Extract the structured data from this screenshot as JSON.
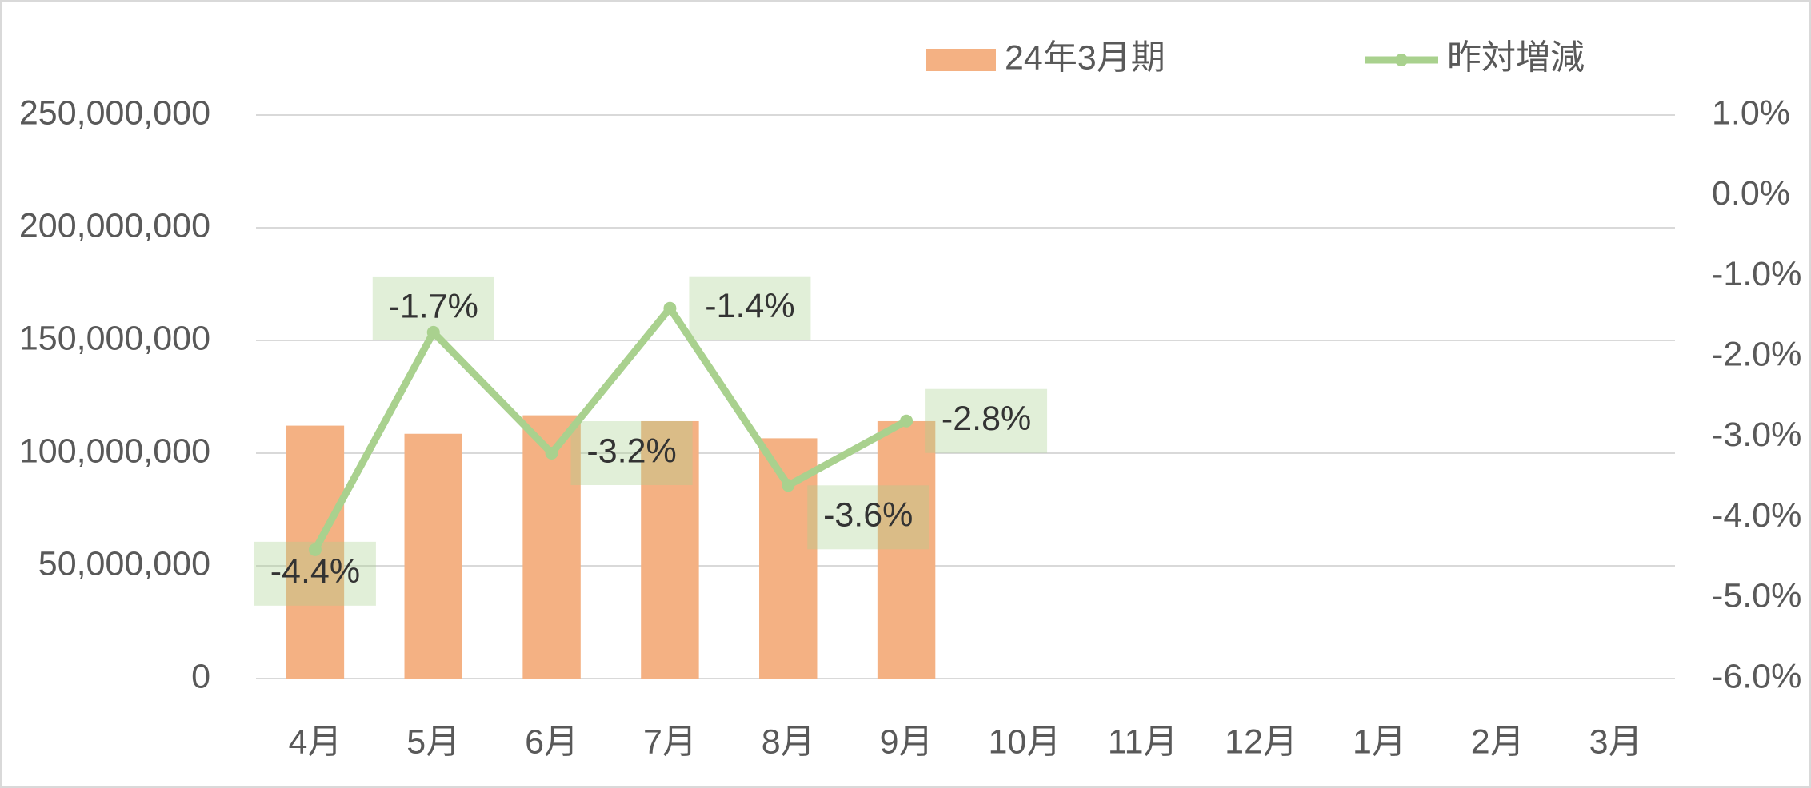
{
  "chart_data": {
    "type": "bar",
    "categories": [
      "4月",
      "5月",
      "6月",
      "7月",
      "8月",
      "9月",
      "10月",
      "11月",
      "12月",
      "1月",
      "2月",
      "3月"
    ],
    "series": [
      {
        "name": "24年3月期",
        "type": "bar",
        "color": "#f4b183",
        "values": [
          112200000,
          108600000,
          116800000,
          114200000,
          106600000,
          114200000,
          null,
          null,
          null,
          null,
          null,
          null
        ]
      },
      {
        "name": "昨対増減",
        "type": "line",
        "axis": "y2",
        "color": "#a9d18e",
        "values": [
          -4.4,
          -1.7,
          -3.2,
          -1.4,
          -3.6,
          -2.8,
          null,
          null,
          null,
          null,
          null,
          null
        ],
        "value_labels": [
          "-4.4%",
          "-1.7%",
          "-3.2%",
          "-1.4%",
          "-3.6%",
          "-2.8%",
          null,
          null,
          null,
          null,
          null,
          null
        ]
      }
    ],
    "ylim": [
      0,
      250000000
    ],
    "yticks": [
      0,
      {
        "value": 50000000,
        "label": "50,000,000"
      },
      {
        "value": 100000000,
        "label": "100,000,000"
      },
      {
        "value": 150000000,
        "label": "150,000,000"
      },
      {
        "value": 200000000,
        "label": "200,000,000"
      },
      {
        "value": 250000000,
        "label": "250,000,000"
      }
    ],
    "y2lim": [
      -6,
      1
    ],
    "y2ticks": [
      {
        "value": -6,
        "label": "-6.0%"
      },
      {
        "value": -5,
        "label": "-5.0%"
      },
      {
        "value": -4,
        "label": "-4.0%"
      },
      {
        "value": -3,
        "label": "-3.0%"
      },
      {
        "value": -2,
        "label": "-2.0%"
      },
      {
        "value": -1,
        "label": "-1.0%"
      },
      {
        "value": 0,
        "label": "0.0%"
      },
      {
        "value": 1,
        "label": "1.0%"
      }
    ],
    "grid": true,
    "legend": "top"
  }
}
